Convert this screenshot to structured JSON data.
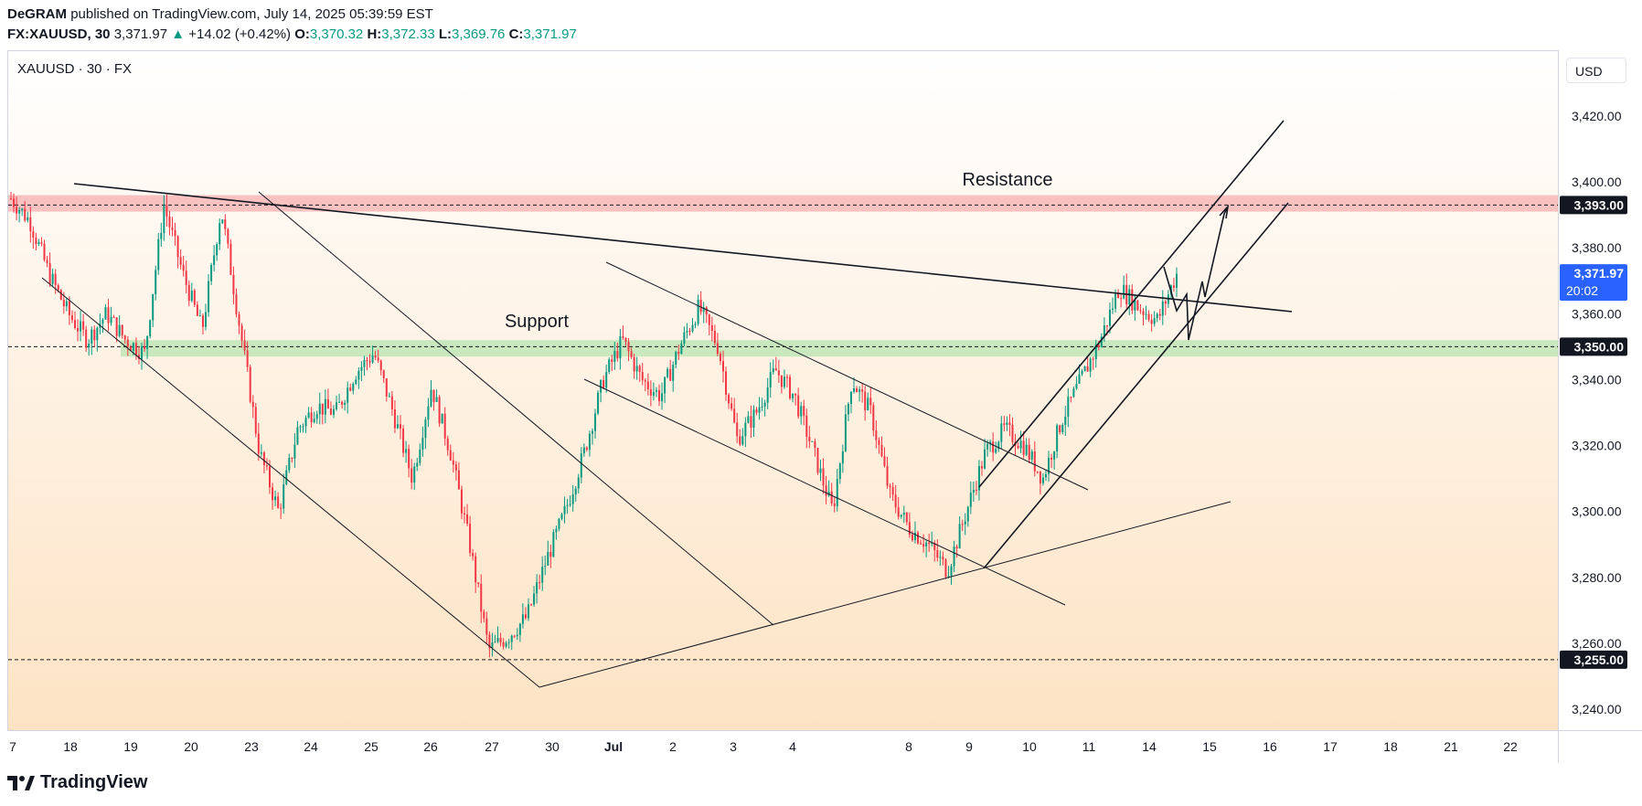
{
  "header": {
    "publisher": "DeGRAM",
    "published_text": "published on TradingView.com, July 14, 2025 05:39:59 EST",
    "symbol": "FX:XAUUSD, 30",
    "last": "3,371.97",
    "change_arrow": "▲",
    "change": "+14.02 (+0.42%)",
    "o_label": "O:",
    "o_value": "3,370.32",
    "h_label": "H:",
    "h_value": "3,372.33",
    "l_label": "L:",
    "l_value": "3,369.76",
    "c_label": "C:",
    "c_value": "3,371.97"
  },
  "pane": {
    "symbol_label": "XAUUSD · 30 · FX",
    "currency_button": "USD"
  },
  "footer": {
    "brand": "TradingView"
  },
  "colors": {
    "up": "#089981",
    "down": "#f23645",
    "resistance_zone": "#f7b9b9",
    "support_zone": "#bfe5b7",
    "last_price_tag": "#2962ff",
    "bg_top": "#ffffff",
    "bg_bottom": "#fde3c4"
  },
  "chart_data": {
    "type": "candlestick",
    "timeframe": "30",
    "ylim": [
      3235,
      3432
    ],
    "y_ticks": [
      "3,240.00",
      "3,260.00",
      "3,280.00",
      "3,300.00",
      "3,320.00",
      "3,340.00",
      "3,360.00",
      "3,380.00",
      "3,400.00",
      "3,420.00"
    ],
    "y_tick_values": [
      3240,
      3260,
      3280,
      3300,
      3320,
      3340,
      3360,
      3380,
      3400,
      3420
    ],
    "x_ticks": [
      "7",
      "18",
      "19",
      "20",
      "23",
      "24",
      "25",
      "26",
      "27",
      "30",
      "Jul",
      "2",
      "3",
      "4",
      "8",
      "9",
      "10",
      "11",
      "14",
      "15",
      "16",
      "17",
      "18",
      "21",
      "22"
    ],
    "x_ticks_bold": [
      "Jul"
    ],
    "price_path": [
      {
        "t": 0,
        "p": 3395
      },
      {
        "t": 1,
        "p": 3388
      },
      {
        "t": 2,
        "p": 3372
      },
      {
        "t": 3,
        "p": 3360
      },
      {
        "t": 4,
        "p": 3352
      },
      {
        "t": 5,
        "p": 3360
      },
      {
        "t": 6,
        "p": 3352
      },
      {
        "t": 7,
        "p": 3348
      },
      {
        "t": 8,
        "p": 3393
      },
      {
        "t": 9,
        "p": 3372
      },
      {
        "t": 10,
        "p": 3355
      },
      {
        "t": 11,
        "p": 3392
      },
      {
        "t": 12,
        "p": 3355
      },
      {
        "t": 13,
        "p": 3318
      },
      {
        "t": 14,
        "p": 3300
      },
      {
        "t": 15,
        "p": 3325
      },
      {
        "t": 16,
        "p": 3332
      },
      {
        "t": 17,
        "p": 3330
      },
      {
        "t": 18,
        "p": 3342
      },
      {
        "t": 19,
        "p": 3348
      },
      {
        "t": 20,
        "p": 3330
      },
      {
        "t": 21,
        "p": 3310
      },
      {
        "t": 22,
        "p": 3338
      },
      {
        "t": 23,
        "p": 3318
      },
      {
        "t": 24,
        "p": 3290
      },
      {
        "t": 25,
        "p": 3258
      },
      {
        "t": 26,
        "p": 3262
      },
      {
        "t": 27,
        "p": 3268
      },
      {
        "t": 28,
        "p": 3285
      },
      {
        "t": 29,
        "p": 3300
      },
      {
        "t": 30,
        "p": 3318
      },
      {
        "t": 31,
        "p": 3340
      },
      {
        "t": 32,
        "p": 3352
      },
      {
        "t": 33,
        "p": 3340
      },
      {
        "t": 34,
        "p": 3335
      },
      {
        "t": 35,
        "p": 3350
      },
      {
        "t": 36,
        "p": 3362
      },
      {
        "t": 37,
        "p": 3350
      },
      {
        "t": 38,
        "p": 3322
      },
      {
        "t": 39,
        "p": 3330
      },
      {
        "t": 40,
        "p": 3343
      },
      {
        "t": 41,
        "p": 3335
      },
      {
        "t": 42,
        "p": 3318
      },
      {
        "t": 43,
        "p": 3300
      },
      {
        "t": 44,
        "p": 3340
      },
      {
        "t": 45,
        "p": 3330
      },
      {
        "t": 46,
        "p": 3305
      },
      {
        "t": 47,
        "p": 3295
      },
      {
        "t": 48,
        "p": 3290
      },
      {
        "t": 49,
        "p": 3282
      },
      {
        "t": 50,
        "p": 3300
      },
      {
        "t": 51,
        "p": 3318
      },
      {
        "t": 52,
        "p": 3325
      },
      {
        "t": 53,
        "p": 3320
      },
      {
        "t": 54,
        "p": 3310
      },
      {
        "t": 55,
        "p": 3328
      },
      {
        "t": 56,
        "p": 3340
      },
      {
        "t": 57,
        "p": 3352
      },
      {
        "t": 58,
        "p": 3368
      },
      {
        "t": 59,
        "p": 3362
      },
      {
        "t": 60,
        "p": 3358
      },
      {
        "t": 61,
        "p": 3372
      }
    ],
    "levels": [
      {
        "label": "3,393.00",
        "value": 3393
      },
      {
        "label": "3,350.00",
        "value": 3350
      },
      {
        "label": "3,255.00",
        "value": 3255
      }
    ],
    "last_price_tag": {
      "price": "3,371.97",
      "countdown": "20:02",
      "value": 3371.97
    },
    "zones": [
      {
        "label": "Resistance",
        "from": 3391,
        "to": 3396
      },
      {
        "label": "Support",
        "from": 3347,
        "to": 3352
      }
    ]
  }
}
